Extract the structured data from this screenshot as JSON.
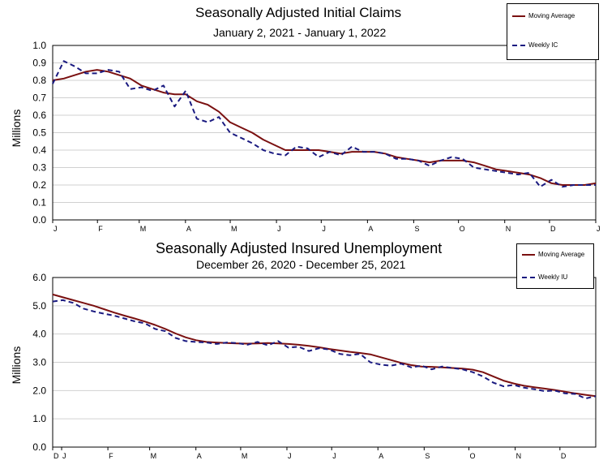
{
  "chart_data": [
    {
      "type": "line",
      "title": "Seasonally Adjusted Initial Claims",
      "subtitle": "January 2, 2021 - January 1, 2022",
      "ylabel": "Millions",
      "ylim": [
        0.0,
        1.0
      ],
      "yticks": [
        "0.0",
        "0.1",
        "0.2",
        "0.3",
        "0.4",
        "0.5",
        "0.6",
        "0.7",
        "0.8",
        "0.9",
        "1.0"
      ],
      "xlim": [
        "2021-01-02",
        "2022-01-01"
      ],
      "xticks": [
        {
          "label": "J",
          "date": "2021-01-02"
        },
        {
          "label": "F",
          "date": "2021-02-01"
        },
        {
          "label": "M",
          "date": "2021-03-01"
        },
        {
          "label": "A",
          "date": "2021-04-01"
        },
        {
          "label": "M",
          "date": "2021-05-01"
        },
        {
          "label": "J",
          "date": "2021-06-01"
        },
        {
          "label": "J",
          "date": "2021-07-01"
        },
        {
          "label": "A",
          "date": "2021-08-01"
        },
        {
          "label": "S",
          "date": "2021-09-01"
        },
        {
          "label": "O",
          "date": "2021-10-01"
        },
        {
          "label": "N",
          "date": "2021-11-01"
        },
        {
          "label": "D",
          "date": "2021-12-01"
        },
        {
          "label": "J",
          "date": "2022-01-01"
        }
      ],
      "legend_position": "top-right",
      "grid": true,
      "series": [
        {
          "name": "Moving Average",
          "color": "#7a1010",
          "style": "solid",
          "values": [
            0.8,
            0.81,
            0.83,
            0.85,
            0.86,
            0.85,
            0.83,
            0.81,
            0.77,
            0.75,
            0.73,
            0.72,
            0.72,
            0.68,
            0.66,
            0.62,
            0.56,
            0.53,
            0.5,
            0.46,
            0.43,
            0.4,
            0.4,
            0.4,
            0.4,
            0.39,
            0.38,
            0.39,
            0.39,
            0.39,
            0.38,
            0.36,
            0.35,
            0.34,
            0.33,
            0.34,
            0.34,
            0.34,
            0.33,
            0.31,
            0.29,
            0.28,
            0.27,
            0.26,
            0.24,
            0.21,
            0.2,
            0.2,
            0.2,
            0.21
          ]
        },
        {
          "name": "Weekly IC",
          "color": "#1a1a80",
          "style": "dashed",
          "values": [
            0.78,
            0.91,
            0.88,
            0.84,
            0.84,
            0.86,
            0.85,
            0.75,
            0.76,
            0.74,
            0.77,
            0.65,
            0.74,
            0.58,
            0.56,
            0.59,
            0.5,
            0.47,
            0.44,
            0.4,
            0.38,
            0.37,
            0.42,
            0.41,
            0.36,
            0.39,
            0.37,
            0.42,
            0.39,
            0.39,
            0.38,
            0.35,
            0.35,
            0.34,
            0.31,
            0.34,
            0.36,
            0.35,
            0.3,
            0.29,
            0.28,
            0.27,
            0.26,
            0.27,
            0.19,
            0.23,
            0.19,
            0.2,
            0.2,
            0.2
          ]
        }
      ]
    },
    {
      "type": "line",
      "title": "Seasonally Adjusted Insured Unemployment",
      "subtitle": "December 26, 2020 - December 25, 2021",
      "ylabel": "Millions",
      "ylim": [
        0.0,
        6.0
      ],
      "yticks": [
        "0.0",
        "1.0",
        "2.0",
        "3.0",
        "4.0",
        "5.0",
        "6.0"
      ],
      "xlim": [
        "2020-12-26",
        "2021-12-25"
      ],
      "xticks": [
        {
          "label": "D",
          "date": "2020-12-26"
        },
        {
          "label": "J",
          "date": "2021-01-01"
        },
        {
          "label": "F",
          "date": "2021-02-01"
        },
        {
          "label": "M",
          "date": "2021-03-01"
        },
        {
          "label": "A",
          "date": "2021-04-01"
        },
        {
          "label": "M",
          "date": "2021-05-01"
        },
        {
          "label": "J",
          "date": "2021-06-01"
        },
        {
          "label": "J",
          "date": "2021-07-01"
        },
        {
          "label": "A",
          "date": "2021-08-01"
        },
        {
          "label": "S",
          "date": "2021-09-01"
        },
        {
          "label": "O",
          "date": "2021-10-01"
        },
        {
          "label": "N",
          "date": "2021-11-01"
        },
        {
          "label": "D",
          "date": "2021-12-01"
        }
      ],
      "legend_position": "top-right",
      "grid": true,
      "series": [
        {
          "name": "Moving Average",
          "color": "#7a1010",
          "style": "solid",
          "values": [
            5.4,
            5.3,
            5.2,
            5.1,
            5.0,
            4.88,
            4.76,
            4.65,
            4.55,
            4.44,
            4.32,
            4.18,
            4.02,
            3.88,
            3.78,
            3.72,
            3.7,
            3.68,
            3.67,
            3.66,
            3.67,
            3.68,
            3.67,
            3.65,
            3.62,
            3.58,
            3.53,
            3.47,
            3.42,
            3.37,
            3.33,
            3.28,
            3.18,
            3.08,
            2.98,
            2.9,
            2.85,
            2.84,
            2.82,
            2.8,
            2.78,
            2.74,
            2.65,
            2.5,
            2.35,
            2.25,
            2.17,
            2.12,
            2.07,
            2.02,
            1.96,
            1.9,
            1.85,
            1.8
          ]
        },
        {
          "name": "Weekly IU",
          "color": "#1a1a80",
          "style": "dashed",
          "values": [
            5.15,
            5.2,
            5.1,
            4.9,
            4.8,
            4.72,
            4.65,
            4.55,
            4.45,
            4.38,
            4.18,
            4.1,
            3.86,
            3.75,
            3.72,
            3.7,
            3.65,
            3.7,
            3.68,
            3.62,
            3.72,
            3.6,
            3.75,
            3.52,
            3.55,
            3.4,
            3.5,
            3.45,
            3.3,
            3.25,
            3.3,
            3.0,
            2.92,
            2.88,
            2.95,
            2.82,
            2.88,
            2.75,
            2.85,
            2.8,
            2.75,
            2.65,
            2.5,
            2.28,
            2.15,
            2.2,
            2.1,
            2.05,
            1.98,
            2.0,
            1.9,
            1.88,
            1.72,
            1.8
          ]
        }
      ]
    }
  ]
}
